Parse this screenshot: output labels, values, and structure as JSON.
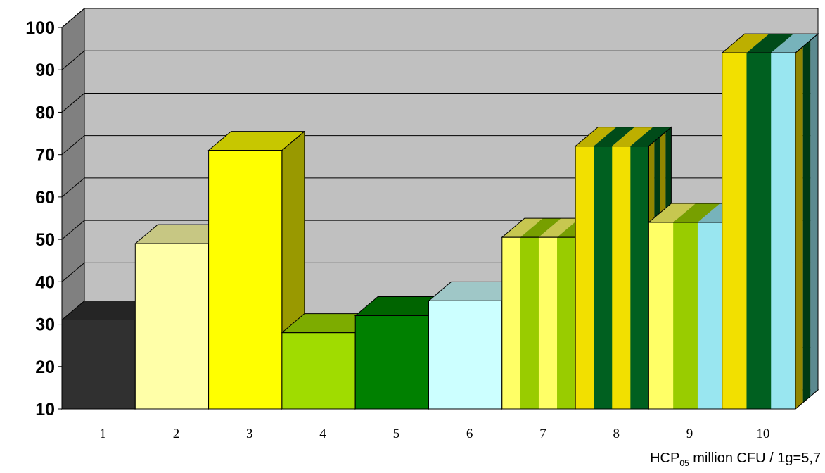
{
  "chart_data": {
    "type": "bar",
    "style": "3d-stacked-stripes",
    "categories": [
      "1",
      "2",
      "3",
      "4",
      "5",
      "6",
      "7",
      "8",
      "9",
      "10"
    ],
    "values": [
      31,
      49,
      71,
      28,
      32,
      35.5,
      50.5,
      72,
      54,
      94
    ],
    "stripe_colors": [
      [
        "#303030"
      ],
      [
        "#ffffa8"
      ],
      [
        "#ffff00"
      ],
      [
        "#a0dc00"
      ],
      [
        "#008000"
      ],
      [
        "#ccffff"
      ],
      [
        "#ffff66",
        "#99cc00",
        "#ffff66",
        "#99cc00"
      ],
      [
        "#f2e000",
        "#006020",
        "#f2e000",
        "#006020"
      ],
      [
        "#ffff66",
        "#99cc00",
        "#99e6f0"
      ],
      [
        "#f2e000",
        "#006020",
        "#99e6f0"
      ]
    ],
    "yticks": [
      "10",
      "20",
      "30",
      "40",
      "50",
      "60",
      "70",
      "80",
      "90",
      "100"
    ],
    "ylim": [
      10,
      100
    ],
    "grid": true,
    "wall_color": "#c0c0c0",
    "title": "",
    "xlabel": "",
    "ylabel": ""
  },
  "footnote": {
    "prefix": "HCP",
    "subscript": "05",
    "suffix": " million CFU / 1g=5,7"
  }
}
